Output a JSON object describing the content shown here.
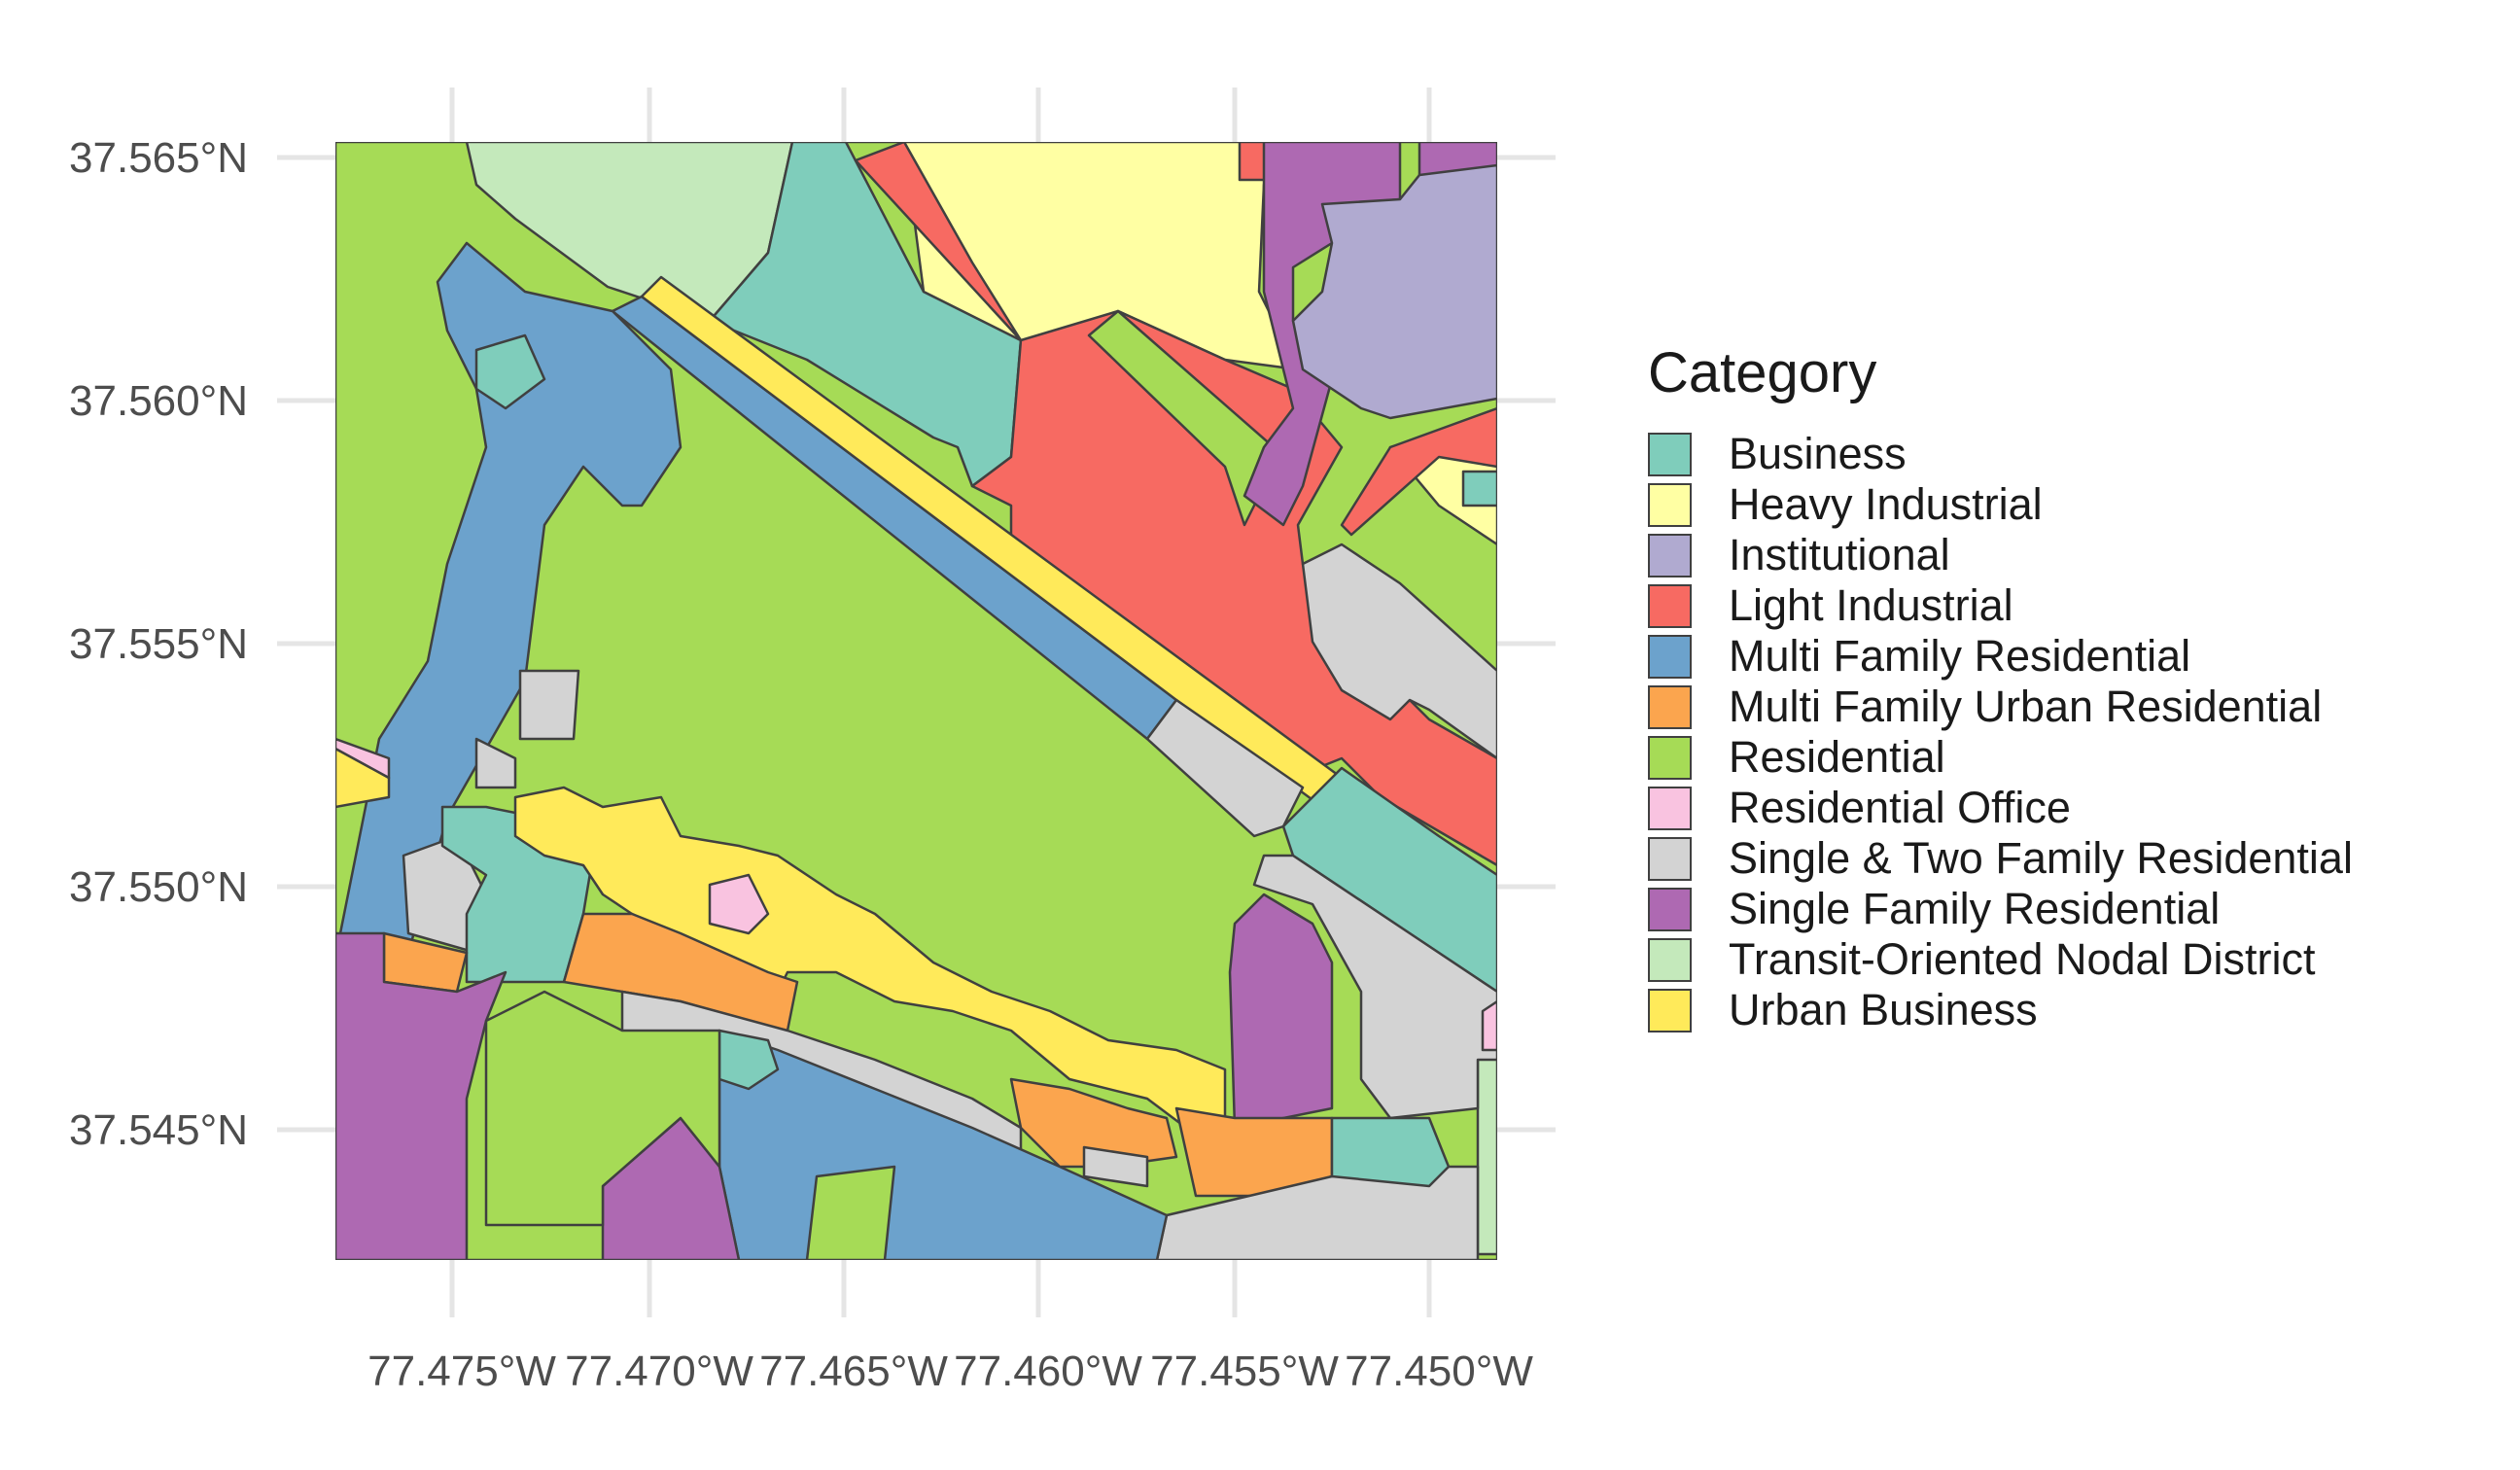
{
  "map": {
    "x_axis": {
      "ticks": [
        "77.475°W",
        "77.470°W",
        "77.465°W",
        "77.460°W",
        "77.455°W",
        "77.450°W"
      ]
    },
    "y_axis": {
      "ticks": [
        "37.565°N",
        "37.560°N",
        "37.555°N",
        "37.550°N",
        "37.545°N"
      ]
    }
  },
  "legend": {
    "title": "Category",
    "items": [
      {
        "label": "Business",
        "color": "#7fcdbb"
      },
      {
        "label": "Heavy Industrial",
        "color": "#ffffa3"
      },
      {
        "label": "Institutional",
        "color": "#b0aad0"
      },
      {
        "label": "Light Industrial",
        "color": "#f76a62"
      },
      {
        "label": "Multi Family Residential",
        "color": "#6ca2cc"
      },
      {
        "label": "Multi Family Urban Residential",
        "color": "#fba54e"
      },
      {
        "label": "Residential",
        "color": "#a6db56"
      },
      {
        "label": "Residential Office",
        "color": "#f9c3e0"
      },
      {
        "label": "Single & Two Family Residential",
        "color": "#d3d3d3"
      },
      {
        "label": "Single Family Residential",
        "color": "#ae69b2"
      },
      {
        "label": "Transit-Oriented Nodal District",
        "color": "#c4e9bb"
      },
      {
        "label": "Urban Business",
        "color": "#ffea5a"
      }
    ]
  }
}
